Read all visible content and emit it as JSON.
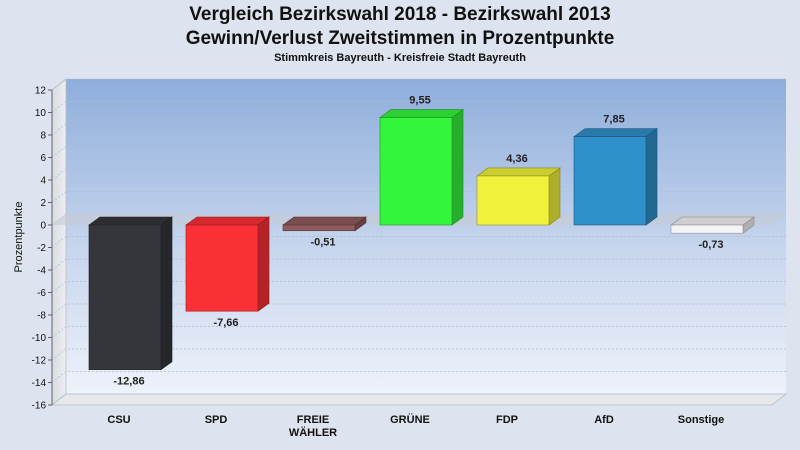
{
  "chart_data": {
    "type": "bar",
    "title_line1": "Vergleich Bezirkswahl 2018 - Bezirkswahl 2013",
    "title_line2": "Gewinn/Verlust Zweitstimmen in Prozentpunkte",
    "subtitle": "Stimmkreis Bayreuth - Kreisfreie Stadt Bayreuth",
    "ylabel": "Prozentpunkte",
    "ylim": [
      -16,
      12
    ],
    "yticks": [
      12,
      10,
      8,
      6,
      4,
      2,
      0,
      -2,
      -4,
      -6,
      -8,
      -10,
      -12,
      -14,
      -16
    ],
    "categories": [
      {
        "label": [
          "CSU"
        ],
        "value": -12.86,
        "value_label": "-12,86",
        "color": "#35363b"
      },
      {
        "label": [
          "SPD"
        ],
        "value": -7.66,
        "value_label": "-7,66",
        "color": "#fb3037"
      },
      {
        "label": [
          "FREIE",
          "WÄHLER"
        ],
        "value": -0.51,
        "value_label": "-0,51",
        "color": "#8f5a5c"
      },
      {
        "label": [
          "GRÜNE"
        ],
        "value": 9.55,
        "value_label": "9,55",
        "color": "#33f53c"
      },
      {
        "label": [
          "FDP"
        ],
        "value": 4.36,
        "value_label": "4,36",
        "color": "#f0f13a"
      },
      {
        "label": [
          "AfD"
        ],
        "value": 7.85,
        "value_label": "7,85",
        "color": "#2f90cc"
      },
      {
        "label": [
          "Sonstige"
        ],
        "value": -0.73,
        "value_label": "-0,73",
        "color": "#f4f4f6"
      }
    ],
    "grid": true,
    "legend": "none"
  }
}
